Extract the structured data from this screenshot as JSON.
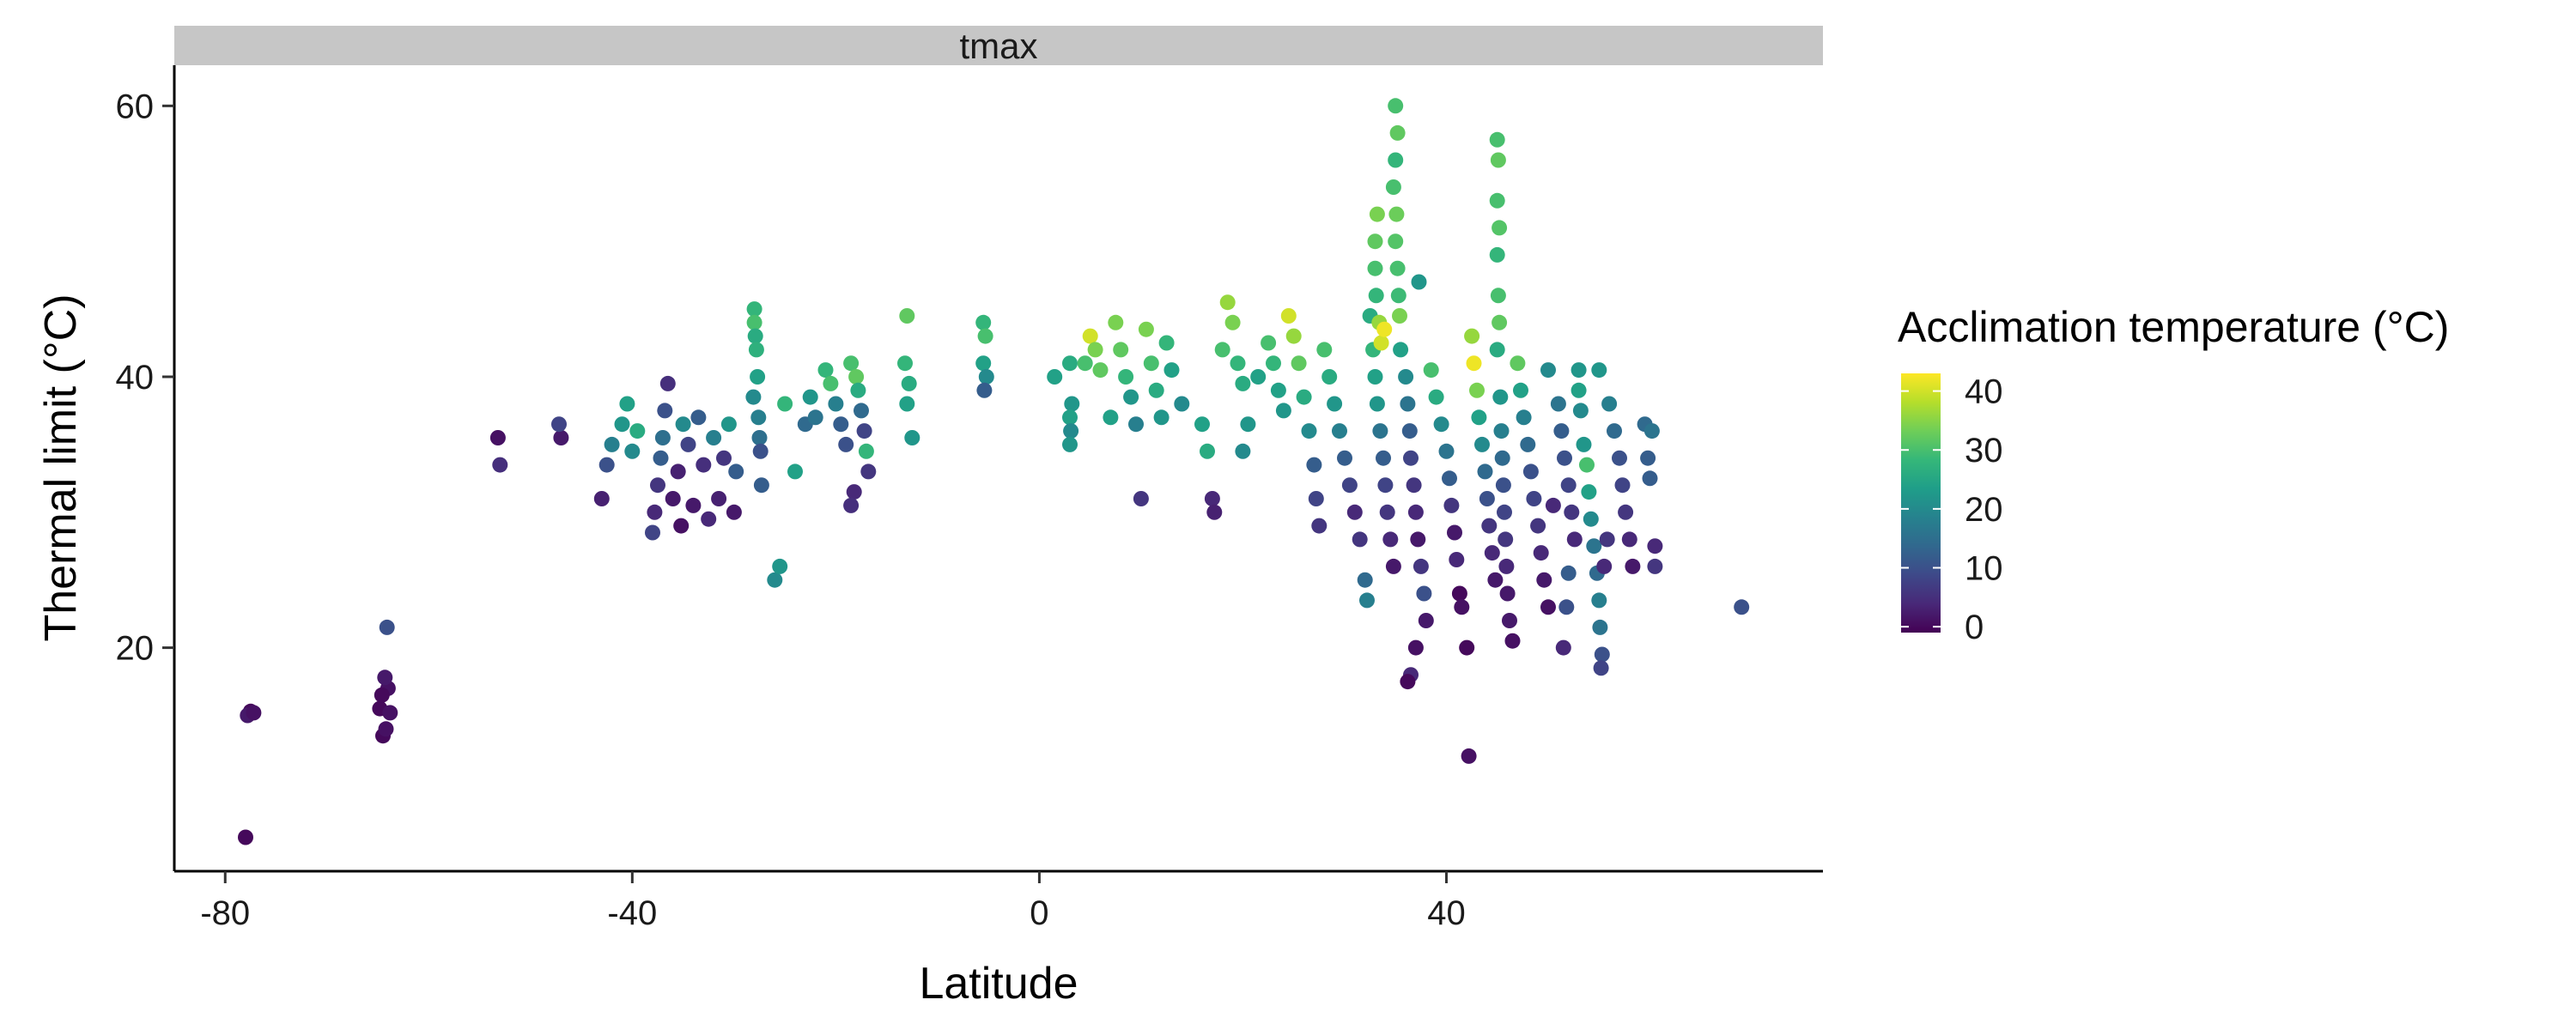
{
  "chart_data": {
    "type": "scatter",
    "facet_label": "tmax",
    "xlabel": "Latitude",
    "ylabel": "Thermal limit (°C)",
    "xlim": [
      -85,
      77
    ],
    "ylim": [
      3.5,
      63
    ],
    "x_ticks": [
      -80,
      -40,
      0,
      40
    ],
    "y_ticks": [
      20,
      40,
      60
    ],
    "grid": false,
    "legend": {
      "title": "Acclimation temperature (°C)",
      "placement": "right",
      "range": [
        -1,
        43
      ],
      "ticks": [
        0,
        10,
        20,
        30,
        40
      ],
      "palette": [
        "#440154",
        "#482878",
        "#3e4989",
        "#31688e",
        "#26828e",
        "#1f9e89",
        "#35b779",
        "#6ece58",
        "#b5de2b",
        "#fde725"
      ]
    },
    "points": [
      [
        -78,
        6,
        0
      ],
      [
        -77.5,
        15.3,
        0
      ],
      [
        -77.8,
        15,
        2
      ],
      [
        -77.2,
        15.2,
        1
      ],
      [
        -64.5,
        13.5,
        0
      ],
      [
        -64.2,
        14,
        1
      ],
      [
        -64.8,
        15.5,
        0
      ],
      [
        -64,
        17,
        1
      ],
      [
        -64.3,
        17.8,
        2
      ],
      [
        -64.1,
        21.5,
        10
      ],
      [
        -64.6,
        16.5,
        0
      ],
      [
        -63.8,
        15.2,
        1
      ],
      [
        -53,
        33.5,
        5
      ],
      [
        -53.2,
        35.5,
        1
      ],
      [
        -47,
        35.5,
        2
      ],
      [
        -47.2,
        36.5,
        8
      ],
      [
        -43,
        31,
        3
      ],
      [
        -42.5,
        33.5,
        10
      ],
      [
        -42,
        35,
        18
      ],
      [
        -41,
        36.5,
        22
      ],
      [
        -40.5,
        38,
        24
      ],
      [
        -40,
        34.5,
        20
      ],
      [
        -39.5,
        36,
        26
      ],
      [
        -38,
        28.5,
        8
      ],
      [
        -37.8,
        30,
        4
      ],
      [
        -37.5,
        32,
        6
      ],
      [
        -37.2,
        34,
        12
      ],
      [
        -37,
        35.5,
        15
      ],
      [
        -36.8,
        37.5,
        10
      ],
      [
        -36.5,
        39.5,
        5
      ],
      [
        -36,
        31,
        2
      ],
      [
        -35.5,
        33,
        3
      ],
      [
        -35.2,
        29,
        1
      ],
      [
        -35,
        36.5,
        20
      ],
      [
        -34.5,
        35,
        8
      ],
      [
        -34,
        30.5,
        2
      ],
      [
        -33.5,
        37,
        12
      ],
      [
        -33,
        33.5,
        5
      ],
      [
        -32.5,
        29.5,
        4
      ],
      [
        -32,
        35.5,
        18
      ],
      [
        -31.5,
        31,
        3
      ],
      [
        -31,
        34,
        6
      ],
      [
        -30.5,
        36.5,
        22
      ],
      [
        -30,
        30,
        2
      ],
      [
        -29.8,
        33,
        12
      ],
      [
        -28,
        45,
        28
      ],
      [
        -28,
        44,
        30
      ],
      [
        -27.9,
        43,
        26
      ],
      [
        -27.8,
        42,
        27
      ],
      [
        -27.7,
        40,
        24
      ],
      [
        -28.1,
        38.5,
        20
      ],
      [
        -27.6,
        37,
        18
      ],
      [
        -27.5,
        35.5,
        15
      ],
      [
        -27.4,
        34.5,
        10
      ],
      [
        -27.3,
        32,
        12
      ],
      [
        -26,
        25,
        20
      ],
      [
        -25.5,
        26,
        22
      ],
      [
        -25,
        38,
        28
      ],
      [
        -24,
        33,
        24
      ],
      [
        -23,
        36.5,
        14
      ],
      [
        -22.5,
        38.5,
        22
      ],
      [
        -22,
        37,
        16
      ],
      [
        -21,
        40.5,
        28
      ],
      [
        -20.5,
        39.5,
        30
      ],
      [
        -20,
        38,
        18
      ],
      [
        -19.5,
        36.5,
        12
      ],
      [
        -19,
        35,
        10
      ],
      [
        -18.5,
        41,
        30
      ],
      [
        -18,
        40,
        32
      ],
      [
        -17.8,
        39,
        26
      ],
      [
        -17.5,
        37.5,
        14
      ],
      [
        -17.2,
        36,
        8
      ],
      [
        -17,
        34.5,
        28
      ],
      [
        -16.8,
        33,
        6
      ],
      [
        -18.2,
        31.5,
        4
      ],
      [
        -18.5,
        30.5,
        5
      ],
      [
        -13,
        44.5,
        32
      ],
      [
        -13.2,
        41,
        28
      ],
      [
        -12.8,
        39.5,
        26
      ],
      [
        -13,
        38,
        24
      ],
      [
        -12.5,
        35.5,
        22
      ],
      [
        -5.5,
        44,
        28
      ],
      [
        -5.3,
        43,
        30
      ],
      [
        -5.5,
        41,
        24
      ],
      [
        -5.2,
        40,
        20
      ],
      [
        -5.4,
        39,
        12
      ],
      [
        1.5,
        40,
        24
      ],
      [
        3,
        41,
        26
      ],
      [
        3.2,
        38,
        22
      ],
      [
        3,
        37,
        24
      ],
      [
        3.1,
        36,
        20
      ],
      [
        3,
        35,
        22
      ],
      [
        4.5,
        41,
        30
      ],
      [
        5,
        43,
        40
      ],
      [
        5.5,
        42,
        34
      ],
      [
        6,
        40.5,
        32
      ],
      [
        7,
        37,
        24
      ],
      [
        7.5,
        44,
        34
      ],
      [
        8,
        42,
        32
      ],
      [
        8.5,
        40,
        28
      ],
      [
        9,
        38.5,
        22
      ],
      [
        9.5,
        36.5,
        18
      ],
      [
        10,
        31,
        6
      ],
      [
        10.5,
        43.5,
        34
      ],
      [
        11,
        41,
        30
      ],
      [
        11.5,
        39,
        26
      ],
      [
        12,
        37,
        22
      ],
      [
        12.5,
        42.5,
        28
      ],
      [
        13,
        40.5,
        24
      ],
      [
        14,
        38,
        20
      ],
      [
        16,
        36.5,
        24
      ],
      [
        16.5,
        34.5,
        26
      ],
      [
        17,
        31,
        4
      ],
      [
        17.2,
        30,
        3
      ],
      [
        18,
        42,
        30
      ],
      [
        18.5,
        45.5,
        36
      ],
      [
        19,
        44,
        34
      ],
      [
        19.5,
        41,
        28
      ],
      [
        20,
        39.5,
        26
      ],
      [
        20.5,
        36.5,
        22
      ],
      [
        20,
        34.5,
        20
      ],
      [
        21.5,
        40,
        24
      ],
      [
        22.5,
        42.5,
        30
      ],
      [
        23,
        41,
        28
      ],
      [
        23.5,
        39,
        24
      ],
      [
        24,
        37.5,
        22
      ],
      [
        24.5,
        44.5,
        40
      ],
      [
        25,
        43,
        36
      ],
      [
        25.5,
        41,
        32
      ],
      [
        26,
        38.5,
        26
      ],
      [
        26.5,
        36,
        20
      ],
      [
        27,
        33.5,
        12
      ],
      [
        27.2,
        31,
        8
      ],
      [
        27.5,
        29,
        6
      ],
      [
        28,
        42,
        30
      ],
      [
        28.5,
        40,
        26
      ],
      [
        29,
        38,
        22
      ],
      [
        29.5,
        36,
        18
      ],
      [
        30,
        34,
        12
      ],
      [
        30.5,
        32,
        8
      ],
      [
        31,
        30,
        4
      ],
      [
        31.5,
        28,
        6
      ],
      [
        32,
        25,
        14
      ],
      [
        32.2,
        23.5,
        18
      ],
      [
        32.5,
        44.5,
        26
      ],
      [
        32.8,
        42,
        28
      ],
      [
        33,
        40,
        24
      ],
      [
        33.2,
        38,
        22
      ],
      [
        33.5,
        36,
        16
      ],
      [
        33.8,
        34,
        12
      ],
      [
        34,
        32,
        8
      ],
      [
        34.2,
        30,
        6
      ],
      [
        34.5,
        28,
        4
      ],
      [
        34.8,
        26,
        2
      ],
      [
        33,
        48,
        30
      ],
      [
        33,
        50,
        32
      ],
      [
        33.2,
        52,
        34
      ],
      [
        33.1,
        46,
        28
      ],
      [
        33.4,
        44,
        36
      ],
      [
        33.6,
        42.5,
        40
      ],
      [
        33.9,
        43.5,
        42
      ],
      [
        35,
        60,
        30
      ],
      [
        35.2,
        58,
        32
      ],
      [
        35,
        56,
        28
      ],
      [
        34.8,
        54,
        30
      ],
      [
        35.1,
        52,
        33
      ],
      [
        35,
        50,
        31
      ],
      [
        35.2,
        48,
        30
      ],
      [
        35.3,
        46,
        29
      ],
      [
        35.4,
        44.5,
        34
      ],
      [
        35.5,
        42,
        24
      ],
      [
        36,
        40,
        20
      ],
      [
        36.2,
        38,
        16
      ],
      [
        36.4,
        36,
        12
      ],
      [
        36.5,
        34,
        8
      ],
      [
        36.8,
        32,
        6
      ],
      [
        37,
        30,
        4
      ],
      [
        37.2,
        28,
        2
      ],
      [
        37.5,
        26,
        6
      ],
      [
        37.8,
        24,
        10
      ],
      [
        38,
        22,
        2
      ],
      [
        36.5,
        18,
        4
      ],
      [
        36.2,
        17.5,
        0
      ],
      [
        37,
        20,
        1
      ],
      [
        37.3,
        47,
        22
      ],
      [
        38.5,
        40.5,
        30
      ],
      [
        39,
        38.5,
        26
      ],
      [
        39.5,
        36.5,
        20
      ],
      [
        40,
        34.5,
        16
      ],
      [
        40.3,
        32.5,
        12
      ],
      [
        40.5,
        30.5,
        6
      ],
      [
        40.8,
        28.5,
        2
      ],
      [
        41,
        26.5,
        4
      ],
      [
        41.3,
        24,
        0
      ],
      [
        41.5,
        23,
        1
      ],
      [
        42,
        20,
        0
      ],
      [
        42.2,
        12,
        1
      ],
      [
        42.5,
        43,
        36
      ],
      [
        42.7,
        41,
        42
      ],
      [
        43,
        39,
        34
      ],
      [
        43.2,
        37,
        24
      ],
      [
        43.5,
        35,
        20
      ],
      [
        43.8,
        33,
        14
      ],
      [
        44,
        31,
        10
      ],
      [
        44.2,
        29,
        6
      ],
      [
        44.5,
        27,
        4
      ],
      [
        44.8,
        25,
        2
      ],
      [
        45,
        57.5,
        30
      ],
      [
        45.1,
        56,
        32
      ],
      [
        45,
        53,
        30
      ],
      [
        45.2,
        51,
        31
      ],
      [
        45,
        49,
        28
      ],
      [
        45.1,
        46,
        30
      ],
      [
        45.2,
        44,
        32
      ],
      [
        45,
        42,
        26
      ],
      [
        45.3,
        38.5,
        22
      ],
      [
        45.4,
        36,
        18
      ],
      [
        45.5,
        34,
        14
      ],
      [
        45.6,
        32,
        10
      ],
      [
        45.7,
        30,
        8
      ],
      [
        45.8,
        28,
        6
      ],
      [
        45.9,
        26,
        4
      ],
      [
        46,
        24,
        2
      ],
      [
        46.2,
        22,
        2
      ],
      [
        46.5,
        20.5,
        1
      ],
      [
        47,
        41,
        32
      ],
      [
        47.3,
        39,
        24
      ],
      [
        47.6,
        37,
        18
      ],
      [
        48,
        35,
        14
      ],
      [
        48.3,
        33,
        10
      ],
      [
        48.6,
        31,
        8
      ],
      [
        49,
        29,
        6
      ],
      [
        49.3,
        27,
        4
      ],
      [
        49.6,
        25,
        2
      ],
      [
        50,
        23,
        1
      ],
      [
        50,
        40.5,
        20
      ],
      [
        50.5,
        30.5,
        4
      ],
      [
        51,
        38,
        16
      ],
      [
        51.3,
        36,
        12
      ],
      [
        51.6,
        34,
        10
      ],
      [
        52,
        32,
        8
      ],
      [
        52.3,
        30,
        6
      ],
      [
        52.6,
        28,
        4
      ],
      [
        52,
        25.5,
        12
      ],
      [
        51.8,
        23,
        10
      ],
      [
        51.5,
        20,
        4
      ],
      [
        53,
        39,
        24
      ],
      [
        53,
        40.5,
        22
      ],
      [
        53.2,
        37.5,
        20
      ],
      [
        53.5,
        35,
        22
      ],
      [
        53.8,
        33.5,
        30
      ],
      [
        54,
        31.5,
        24
      ],
      [
        54.2,
        29.5,
        20
      ],
      [
        54.5,
        27.5,
        16
      ],
      [
        54.8,
        25.5,
        14
      ],
      [
        55,
        23.5,
        18
      ],
      [
        55.1,
        21.5,
        16
      ],
      [
        55.3,
        19.5,
        10
      ],
      [
        55.2,
        18.5,
        8
      ],
      [
        55.5,
        26,
        4
      ],
      [
        55.8,
        28,
        6
      ],
      [
        55,
        40.5,
        22
      ],
      [
        56,
        38,
        18
      ],
      [
        56.5,
        36,
        14
      ],
      [
        57,
        34,
        10
      ],
      [
        57.3,
        32,
        8
      ],
      [
        57.6,
        30,
        6
      ],
      [
        58,
        28,
        4
      ],
      [
        58.3,
        26,
        2
      ],
      [
        59.5,
        36.5,
        14
      ],
      [
        59.8,
        34,
        12
      ],
      [
        60,
        32.5,
        12
      ],
      [
        60.2,
        36,
        16
      ],
      [
        60.5,
        27.5,
        4
      ],
      [
        60.5,
        26,
        6
      ],
      [
        69,
        23,
        10
      ]
    ]
  }
}
